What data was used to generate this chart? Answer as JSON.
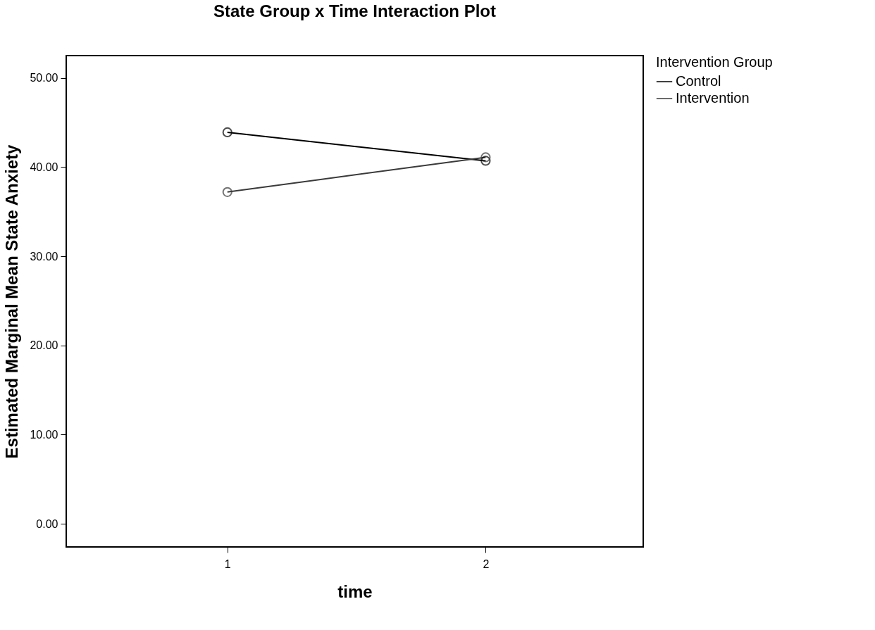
{
  "chart_data": {
    "type": "line",
    "title": "State Group x Time Interaction Plot",
    "xlabel": "time",
    "ylabel": "Estimated Marginal Mean State Anxiety",
    "legend_title": "Intervention Group",
    "categories": [
      "1",
      "2"
    ],
    "series": [
      {
        "name": "Control",
        "color": "#000000",
        "values": [
          43.9,
          40.7
        ]
      },
      {
        "name": "Intervention",
        "color": "#3a3a3a",
        "values": [
          37.2,
          41.1
        ]
      }
    ],
    "ylim": [
      -2.6,
      52.5
    ],
    "yticks": [
      {
        "value": 0,
        "label": "0.00"
      },
      {
        "value": 10,
        "label": "10.00"
      },
      {
        "value": 20,
        "label": "20.00"
      },
      {
        "value": 30,
        "label": "30.00"
      },
      {
        "value": 40,
        "label": "40.00"
      },
      {
        "value": 50,
        "label": "50.00"
      }
    ],
    "grid": false,
    "legend": "top right",
    "marker": "circle",
    "line_style": "solid"
  }
}
